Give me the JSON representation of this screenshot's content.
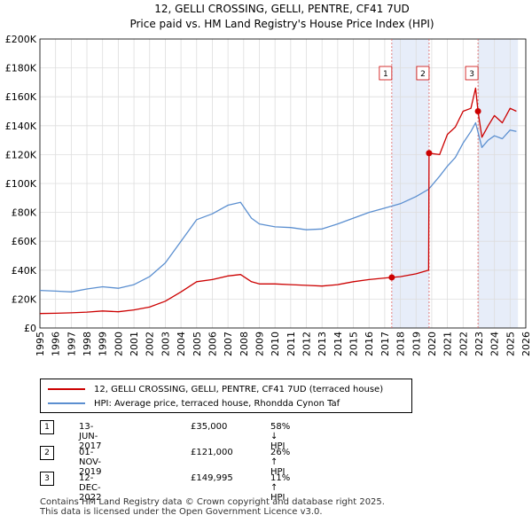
{
  "chart_data": {
    "type": "line",
    "title": "12, GELLI CROSSING, GELLI, PENTRE, CF41 7UD",
    "subtitle": "Price paid vs. HM Land Registry's House Price Index (HPI)",
    "xlim": [
      1995,
      2026
    ],
    "ylim": [
      0,
      200000
    ],
    "x_ticks": [
      1995,
      1996,
      1997,
      1998,
      1999,
      2000,
      2001,
      2002,
      2003,
      2004,
      2005,
      2006,
      2007,
      2008,
      2009,
      2010,
      2011,
      2012,
      2013,
      2014,
      2015,
      2016,
      2017,
      2018,
      2019,
      2020,
      2021,
      2022,
      2023,
      2024,
      2025,
      2026
    ],
    "y_ticks": [
      {
        "value": 0,
        "label": "£0"
      },
      {
        "value": 20000,
        "label": "£20K"
      },
      {
        "value": 40000,
        "label": "£40K"
      },
      {
        "value": 60000,
        "label": "£60K"
      },
      {
        "value": 80000,
        "label": "£80K"
      },
      {
        "value": 100000,
        "label": "£100K"
      },
      {
        "value": 120000,
        "label": "£120K"
      },
      {
        "value": 140000,
        "label": "£140K"
      },
      {
        "value": 160000,
        "label": "£160K"
      },
      {
        "value": 180000,
        "label": "£180K"
      },
      {
        "value": 200000,
        "label": "£200K"
      }
    ],
    "shaded_regions": [
      [
        2017.45,
        2019.83
      ],
      [
        2022.95,
        2025.5
      ]
    ],
    "series": [
      {
        "name": "12, GELLI CROSSING, GELLI, PENTRE, CF41 7UD (terraced house)",
        "color": "#cc0000",
        "x": [
          1995,
          1996,
          1997,
          1998,
          1999,
          2000,
          2001,
          2002,
          2003,
          2004,
          2005,
          2006,
          2007,
          2007.8,
          2008.5,
          2009,
          2010,
          2011,
          2012,
          2013,
          2014,
          2015,
          2016,
          2017.45,
          2018,
          2019,
          2019.8,
          2019.83,
          2020.5,
          2021,
          2021.5,
          2022,
          2022.5,
          2022.8,
          2022.95,
          2023.2,
          2023.6,
          2024,
          2024.5,
          2025,
          2025.4
        ],
        "values": [
          10000,
          10200,
          10500,
          11000,
          11800,
          11200,
          12500,
          14500,
          18500,
          25000,
          32000,
          33500,
          36000,
          37000,
          32000,
          30500,
          30500,
          30000,
          29500,
          29000,
          30000,
          32000,
          33500,
          35000,
          35500,
          37500,
          40000,
          121000,
          120000,
          134000,
          139000,
          150000,
          152000,
          166000,
          149995,
          132000,
          140000,
          147000,
          142000,
          152000,
          150000
        ]
      },
      {
        "name": "HPI: Average price, terraced house, Rhondda Cynon Taf",
        "color": "#5b8fd0",
        "x": [
          1995,
          1996,
          1997,
          1998,
          1999,
          2000,
          2001,
          2002,
          2003,
          2004,
          2005,
          2006,
          2007,
          2007.8,
          2008.5,
          2009,
          2010,
          2011,
          2012,
          2013,
          2014,
          2015,
          2016,
          2017,
          2018,
          2019,
          2019.8,
          2020.5,
          2021,
          2021.5,
          2022,
          2022.5,
          2022.8,
          2023.2,
          2023.6,
          2024,
          2024.5,
          2025,
          2025.4
        ],
        "values": [
          26000,
          25500,
          25000,
          27000,
          28500,
          27500,
          30000,
          35500,
          45000,
          60000,
          75000,
          79000,
          85000,
          87000,
          76000,
          72000,
          70000,
          69500,
          68000,
          68500,
          72000,
          76000,
          80000,
          83000,
          86000,
          91000,
          96000,
          105000,
          112000,
          118000,
          128000,
          136000,
          142000,
          125000,
          130000,
          133000,
          131000,
          137000,
          136000
        ]
      }
    ],
    "sale_markers": [
      {
        "num": "1",
        "x": 2017.45,
        "y": 35000
      },
      {
        "num": "2",
        "x": 2019.83,
        "y": 121000
      },
      {
        "num": "3",
        "x": 2022.95,
        "y": 149995
      }
    ]
  },
  "legend": {
    "property_label": "12, GELLI CROSSING, GELLI, PENTRE, CF41 7UD (terraced house)",
    "hpi_label": "HPI: Average price, terraced house, Rhondda Cynon Taf"
  },
  "transactions": [
    {
      "num": "1",
      "date": "13-JUN-2017",
      "price": "£35,000",
      "hpi": "58% ↓ HPI"
    },
    {
      "num": "2",
      "date": "01-NOV-2019",
      "price": "£121,000",
      "hpi": "26% ↑ HPI"
    },
    {
      "num": "3",
      "date": "12-DEC-2022",
      "price": "£149,995",
      "hpi": "11% ↑ HPI"
    }
  ],
  "footer": {
    "line1": "Contains HM Land Registry data © Crown copyright and database right 2025.",
    "line2": "This data is licensed under the Open Government Licence v3.0."
  }
}
